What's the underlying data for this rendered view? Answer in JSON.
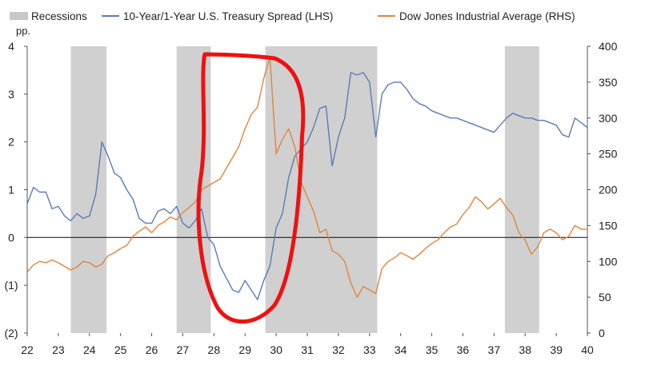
{
  "chart_data": {
    "type": "line",
    "legend": {
      "placement": "top",
      "items": [
        {
          "label": "Recessions",
          "color": "#c8c8c8"
        },
        {
          "label": "10-Year/1-Year U.S. Treasury Spread (LHS)",
          "color": "#5b7bb8"
        },
        {
          "label": "Dow Jones Industrial Average (RHS)",
          "color": "#e0843c"
        }
      ]
    },
    "left_axis": {
      "unit": "pp.",
      "ylim": [
        -2,
        4
      ],
      "ticks": [
        "(2)",
        "(1)",
        "0",
        "1",
        "2",
        "3",
        "4"
      ]
    },
    "right_axis": {
      "ylim": [
        0,
        400
      ],
      "ticks": [
        "0",
        "50",
        "100",
        "150",
        "200",
        "250",
        "300",
        "350",
        "400"
      ]
    },
    "x_axis": {
      "xlim": [
        22,
        40
      ],
      "ticks": [
        "22",
        "23",
        "24",
        "25",
        "26",
        "27",
        "28",
        "29",
        "30",
        "31",
        "32",
        "33",
        "34",
        "35",
        "36",
        "37",
        "38",
        "39",
        "40"
      ]
    },
    "zero_line": 0,
    "grid": false,
    "recessions": [
      [
        23.4,
        24.55
      ],
      [
        26.8,
        27.9
      ],
      [
        29.65,
        33.25
      ],
      [
        37.35,
        38.45
      ]
    ],
    "highlight": {
      "shape": "hand-drawn loop",
      "color": "#ee1111",
      "x_range": [
        27.5,
        30.9
      ]
    },
    "series": [
      {
        "name": "10-Year/1-Year U.S. Treasury Spread (LHS)",
        "axis": "left",
        "color": "#5b7bb8",
        "x": [
          22,
          22.2,
          22.4,
          22.6,
          22.8,
          23,
          23.2,
          23.4,
          23.6,
          23.8,
          24,
          24.2,
          24.4,
          24.6,
          24.8,
          25,
          25.2,
          25.4,
          25.6,
          25.8,
          26,
          26.2,
          26.4,
          26.6,
          26.8,
          27,
          27.2,
          27.4,
          27.6,
          27.8,
          28,
          28.2,
          28.4,
          28.6,
          28.8,
          29,
          29.2,
          29.4,
          29.6,
          29.8,
          30,
          30.2,
          30.4,
          30.6,
          30.8,
          31,
          31.2,
          31.4,
          31.6,
          31.8,
          32,
          32.2,
          32.4,
          32.6,
          32.8,
          33,
          33.2,
          33.4,
          33.6,
          33.8,
          34,
          34.2,
          34.4,
          34.6,
          34.8,
          35,
          35.2,
          35.4,
          35.6,
          35.8,
          36,
          36.2,
          36.4,
          36.6,
          36.8,
          37,
          37.2,
          37.4,
          37.6,
          37.8,
          38,
          38.2,
          38.4,
          38.6,
          38.8,
          39,
          39.2,
          39.4,
          39.6,
          39.8,
          40
        ],
        "y": [
          0.7,
          1.05,
          0.95,
          0.95,
          0.6,
          0.65,
          0.45,
          0.35,
          0.5,
          0.4,
          0.45,
          0.9,
          2.0,
          1.7,
          1.35,
          1.25,
          1.0,
          0.8,
          0.4,
          0.3,
          0.3,
          0.55,
          0.6,
          0.5,
          0.65,
          0.3,
          0.2,
          0.35,
          0.6,
          0.0,
          -0.15,
          -0.6,
          -0.85,
          -1.1,
          -1.15,
          -0.9,
          -1.1,
          -1.3,
          -0.9,
          -0.6,
          0.2,
          0.5,
          1.25,
          1.7,
          1.85,
          2.0,
          2.3,
          2.7,
          2.75,
          1.5,
          2.1,
          2.5,
          3.45,
          3.4,
          3.45,
          3.25,
          2.1,
          3.0,
          3.2,
          3.25,
          3.25,
          3.1,
          2.9,
          2.8,
          2.75,
          2.65,
          2.6,
          2.55,
          2.5,
          2.5,
          2.45,
          2.4,
          2.35,
          2.3,
          2.25,
          2.2,
          2.35,
          2.5,
          2.6,
          2.55,
          2.5,
          2.5,
          2.45,
          2.45,
          2.4,
          2.35,
          2.15,
          2.1,
          2.5,
          2.4,
          2.3
        ]
      },
      {
        "name": "Dow Jones Industrial Average (RHS)",
        "axis": "right",
        "color": "#e0843c",
        "x": [
          22,
          22.2,
          22.4,
          22.6,
          22.8,
          23,
          23.2,
          23.4,
          23.6,
          23.8,
          24,
          24.2,
          24.4,
          24.6,
          24.8,
          25,
          25.2,
          25.4,
          25.6,
          25.8,
          26,
          26.2,
          26.4,
          26.6,
          26.8,
          27,
          27.2,
          27.4,
          27.6,
          27.8,
          28,
          28.2,
          28.4,
          28.6,
          28.8,
          29,
          29.2,
          29.4,
          29.6,
          29.8,
          30,
          30.2,
          30.4,
          30.6,
          30.8,
          31,
          31.2,
          31.4,
          31.6,
          31.8,
          32,
          32.2,
          32.4,
          32.6,
          32.8,
          33,
          33.2,
          33.4,
          33.6,
          33.8,
          34,
          34.2,
          34.4,
          34.6,
          34.8,
          35,
          35.2,
          35.4,
          35.6,
          35.8,
          36,
          36.2,
          36.4,
          36.6,
          36.8,
          37,
          37.2,
          37.4,
          37.6,
          37.8,
          38,
          38.2,
          38.4,
          38.6,
          38.8,
          39,
          39.2,
          39.4,
          39.6,
          39.8,
          40
        ],
        "y": [
          85,
          95,
          100,
          98,
          102,
          98,
          93,
          88,
          92,
          100,
          98,
          92,
          96,
          108,
          112,
          118,
          122,
          135,
          142,
          148,
          140,
          150,
          155,
          162,
          158,
          168,
          175,
          183,
          200,
          205,
          210,
          215,
          230,
          245,
          260,
          285,
          305,
          315,
          355,
          385,
          250,
          270,
          285,
          260,
          210,
          190,
          170,
          140,
          145,
          115,
          110,
          100,
          70,
          50,
          65,
          60,
          55,
          90,
          100,
          105,
          112,
          108,
          103,
          110,
          118,
          125,
          130,
          140,
          148,
          152,
          165,
          175,
          190,
          183,
          173,
          180,
          188,
          175,
          165,
          140,
          130,
          110,
          120,
          140,
          145,
          140,
          130,
          135,
          150,
          145,
          145
        ]
      }
    ]
  }
}
